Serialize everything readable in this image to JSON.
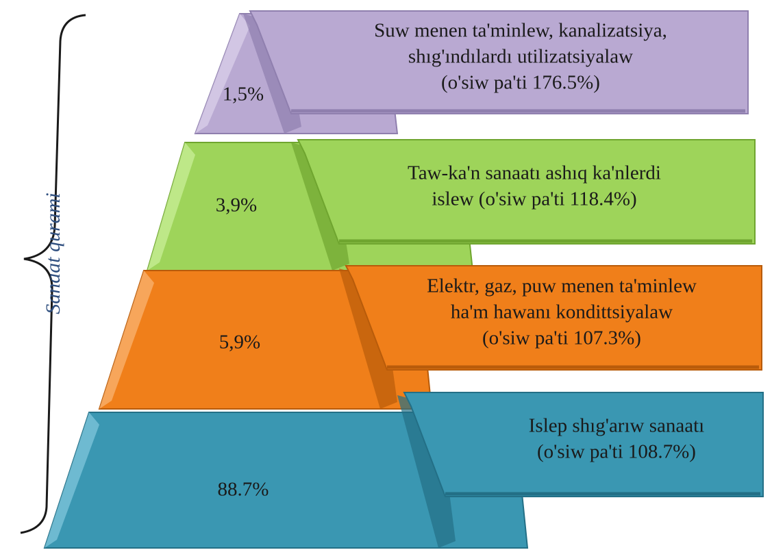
{
  "brace_label": "Sanaat qurami",
  "tiers": [
    {
      "percent": "1,5%",
      "lines": [
        "Suw menen ta'minlew, kanalizatsiya,",
        "shıg'ındılardı utilizatsiyalaw",
        "(o'siw pa'ti  176.5%)"
      ]
    },
    {
      "percent": "3,9%",
      "lines": [
        "Taw-ka'n  sanaatı ashıq ka'nlerdi",
        "islew (o'siw pa'ti 118.4%)"
      ]
    },
    {
      "percent": "5,9%",
      "lines": [
        "Elektr, gaz, puw menen ta'minlew",
        "ha'm hawanı kondittsiyalaw",
        "(o'siw pa'ti  107.3%)"
      ]
    },
    {
      "percent": "88.7%",
      "lines": [
        "Islep shıg'arıw sanaatı",
        " (o'siw pa'ti 108.7%)"
      ]
    }
  ]
}
